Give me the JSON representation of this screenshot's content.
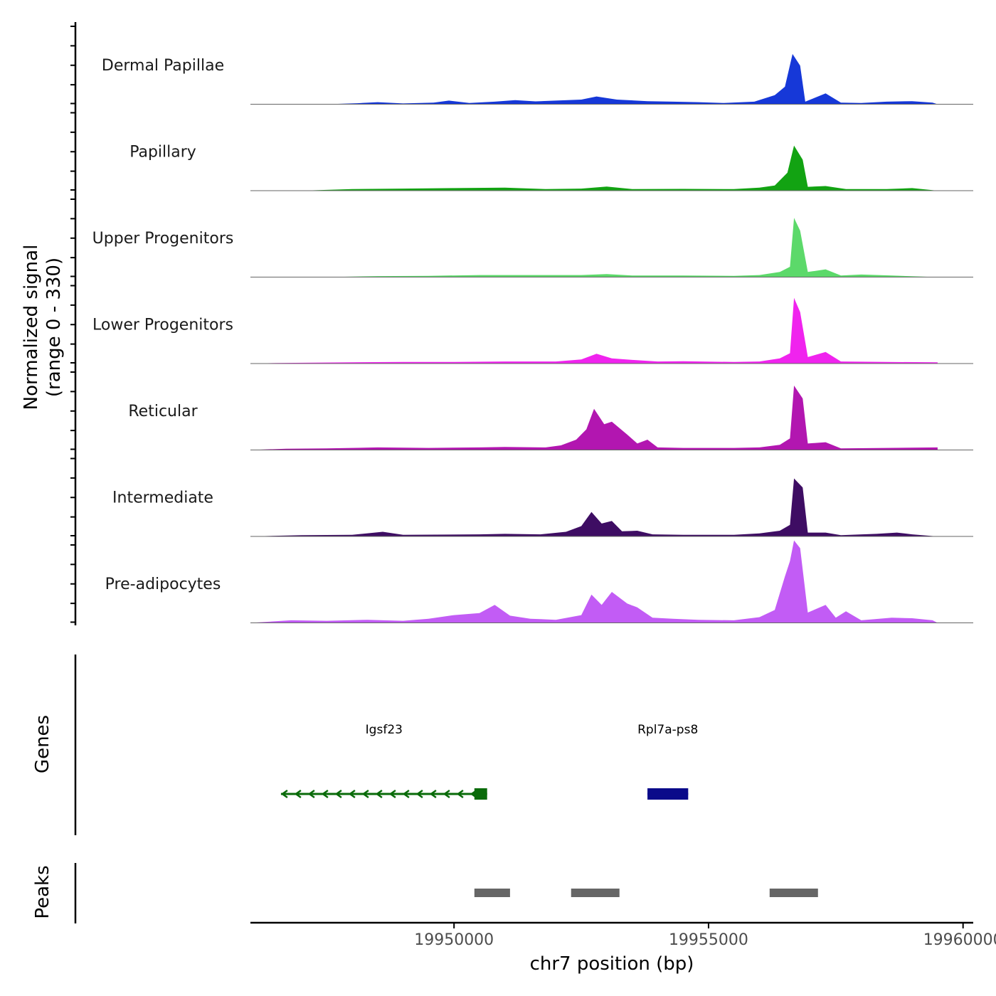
{
  "chart_data": {
    "type": "area",
    "title": "",
    "xlabel": "chr7 position (bp)",
    "ylabel": [
      "Normalized signal",
      "(range 0 - 330)"
    ],
    "ylim": [
      0,
      330
    ],
    "xlim": [
      19946000,
      19960200
    ],
    "x_ticks": [
      19950000,
      19955000,
      19960000
    ],
    "x_tick_labels": [
      "19950000",
      "19955000",
      "19960000"
    ],
    "tracks": [
      {
        "name": "Dermal Papillae",
        "color": "#1638d8",
        "points": [
          [
            19946000,
            0
          ],
          [
            19947500,
            0
          ],
          [
            19948100,
            4
          ],
          [
            19948500,
            8
          ],
          [
            19949000,
            3
          ],
          [
            19949600,
            6
          ],
          [
            19949900,
            14
          ],
          [
            19950300,
            5
          ],
          [
            19950800,
            10
          ],
          [
            19951200,
            16
          ],
          [
            19951600,
            11
          ],
          [
            19952000,
            14
          ],
          [
            19952500,
            18
          ],
          [
            19952800,
            30
          ],
          [
            19953200,
            18
          ],
          [
            19953800,
            12
          ],
          [
            19954300,
            10
          ],
          [
            19954800,
            8
          ],
          [
            19955300,
            5
          ],
          [
            19955900,
            10
          ],
          [
            19956300,
            35
          ],
          [
            19956500,
            68
          ],
          [
            19956650,
            195
          ],
          [
            19956800,
            150
          ],
          [
            19956900,
            10
          ],
          [
            19957300,
            42
          ],
          [
            19957600,
            6
          ],
          [
            19958000,
            5
          ],
          [
            19958500,
            10
          ],
          [
            19959000,
            12
          ],
          [
            19959400,
            6
          ],
          [
            19959500,
            0
          ]
        ]
      },
      {
        "name": "Papillary",
        "color": "#12a312",
        "points": [
          [
            19946000,
            0
          ],
          [
            19947000,
            0
          ],
          [
            19948000,
            6
          ],
          [
            19949000,
            8
          ],
          [
            19950000,
            10
          ],
          [
            19951000,
            12
          ],
          [
            19951800,
            6
          ],
          [
            19952500,
            8
          ],
          [
            19953000,
            16
          ],
          [
            19953500,
            6
          ],
          [
            19954500,
            7
          ],
          [
            19955500,
            6
          ],
          [
            19956000,
            12
          ],
          [
            19956300,
            20
          ],
          [
            19956550,
            70
          ],
          [
            19956680,
            175
          ],
          [
            19956850,
            120
          ],
          [
            19956950,
            15
          ],
          [
            19957300,
            18
          ],
          [
            19957700,
            6
          ],
          [
            19958500,
            6
          ],
          [
            19959000,
            10
          ],
          [
            19959500,
            0
          ]
        ]
      },
      {
        "name": "Upper Progenitors",
        "color": "#5cd96a",
        "points": [
          [
            19946000,
            0
          ],
          [
            19947500,
            0
          ],
          [
            19948500,
            4
          ],
          [
            19949500,
            5
          ],
          [
            19950500,
            8
          ],
          [
            19951500,
            8
          ],
          [
            19952500,
            8
          ],
          [
            19953000,
            12
          ],
          [
            19953500,
            6
          ],
          [
            19954500,
            6
          ],
          [
            19955500,
            5
          ],
          [
            19956000,
            8
          ],
          [
            19956400,
            20
          ],
          [
            19956600,
            40
          ],
          [
            19956680,
            230
          ],
          [
            19956800,
            180
          ],
          [
            19956950,
            20
          ],
          [
            19957300,
            30
          ],
          [
            19957600,
            6
          ],
          [
            19958000,
            10
          ],
          [
            19958600,
            6
          ],
          [
            19959500,
            0
          ]
        ]
      },
      {
        "name": "Lower Progenitors",
        "color": "#f023ee",
        "points": [
          [
            19946000,
            0
          ],
          [
            19946500,
            2
          ],
          [
            19948000,
            5
          ],
          [
            19949000,
            6
          ],
          [
            19950000,
            6
          ],
          [
            19951000,
            8
          ],
          [
            19952000,
            8
          ],
          [
            19952500,
            16
          ],
          [
            19952800,
            38
          ],
          [
            19953100,
            20
          ],
          [
            19953500,
            14
          ],
          [
            19954000,
            8
          ],
          [
            19954500,
            9
          ],
          [
            19955500,
            6
          ],
          [
            19956000,
            8
          ],
          [
            19956400,
            20
          ],
          [
            19956600,
            40
          ],
          [
            19956680,
            255
          ],
          [
            19956800,
            200
          ],
          [
            19956950,
            25
          ],
          [
            19957300,
            45
          ],
          [
            19957600,
            8
          ],
          [
            19958500,
            6
          ],
          [
            19959500,
            5
          ],
          [
            19959500,
            0
          ]
        ]
      },
      {
        "name": "Reticular",
        "color": "#b216b0",
        "points": [
          [
            19946000,
            0
          ],
          [
            19946700,
            5
          ],
          [
            19947500,
            6
          ],
          [
            19948500,
            10
          ],
          [
            19949500,
            8
          ],
          [
            19950500,
            10
          ],
          [
            19951000,
            12
          ],
          [
            19951800,
            10
          ],
          [
            19952100,
            18
          ],
          [
            19952400,
            40
          ],
          [
            19952600,
            80
          ],
          [
            19952750,
            160
          ],
          [
            19952950,
            100
          ],
          [
            19953100,
            110
          ],
          [
            19953400,
            60
          ],
          [
            19953600,
            25
          ],
          [
            19953800,
            40
          ],
          [
            19954000,
            10
          ],
          [
            19954500,
            8
          ],
          [
            19955500,
            8
          ],
          [
            19956000,
            10
          ],
          [
            19956400,
            20
          ],
          [
            19956600,
            45
          ],
          [
            19956680,
            250
          ],
          [
            19956850,
            200
          ],
          [
            19956950,
            25
          ],
          [
            19957300,
            30
          ],
          [
            19957600,
            6
          ],
          [
            19958500,
            8
          ],
          [
            19959500,
            10
          ],
          [
            19959500,
            0
          ]
        ]
      },
      {
        "name": "Intermediate",
        "color": "#3e0d63",
        "points": [
          [
            19946000,
            0
          ],
          [
            19947000,
            5
          ],
          [
            19948000,
            6
          ],
          [
            19948600,
            18
          ],
          [
            19949000,
            6
          ],
          [
            19950500,
            8
          ],
          [
            19951000,
            10
          ],
          [
            19951700,
            8
          ],
          [
            19952200,
            18
          ],
          [
            19952500,
            40
          ],
          [
            19952700,
            95
          ],
          [
            19952900,
            50
          ],
          [
            19953100,
            60
          ],
          [
            19953300,
            20
          ],
          [
            19953600,
            22
          ],
          [
            19953900,
            8
          ],
          [
            19954500,
            6
          ],
          [
            19955500,
            6
          ],
          [
            19956000,
            12
          ],
          [
            19956400,
            22
          ],
          [
            19956600,
            45
          ],
          [
            19956680,
            225
          ],
          [
            19956850,
            190
          ],
          [
            19956950,
            15
          ],
          [
            19957300,
            15
          ],
          [
            19957600,
            5
          ],
          [
            19958300,
            10
          ],
          [
            19958700,
            15
          ],
          [
            19959000,
            8
          ],
          [
            19959500,
            0
          ]
        ]
      },
      {
        "name": "Pre-adipocytes",
        "color": "#c25cf5",
        "points": [
          [
            19946000,
            0
          ],
          [
            19946800,
            10
          ],
          [
            19947500,
            8
          ],
          [
            19948300,
            12
          ],
          [
            19949000,
            8
          ],
          [
            19949500,
            16
          ],
          [
            19950000,
            30
          ],
          [
            19950500,
            38
          ],
          [
            19950800,
            70
          ],
          [
            19951100,
            28
          ],
          [
            19951500,
            16
          ],
          [
            19952000,
            12
          ],
          [
            19952500,
            30
          ],
          [
            19952700,
            110
          ],
          [
            19952900,
            70
          ],
          [
            19953100,
            120
          ],
          [
            19953400,
            75
          ],
          [
            19953600,
            60
          ],
          [
            19953900,
            20
          ],
          [
            19954300,
            16
          ],
          [
            19954800,
            12
          ],
          [
            19955500,
            10
          ],
          [
            19956000,
            22
          ],
          [
            19956300,
            50
          ],
          [
            19956500,
            180
          ],
          [
            19956600,
            240
          ],
          [
            19956680,
            320
          ],
          [
            19956800,
            290
          ],
          [
            19956950,
            40
          ],
          [
            19957300,
            70
          ],
          [
            19957500,
            20
          ],
          [
            19957700,
            45
          ],
          [
            19958000,
            10
          ],
          [
            19958600,
            20
          ],
          [
            19959000,
            18
          ],
          [
            19959400,
            10
          ],
          [
            19959500,
            0
          ]
        ]
      }
    ],
    "genes": [
      {
        "name": "Igsf23",
        "color": "#0a6b0a",
        "start": 19946600,
        "end": 19950650,
        "strand": "-",
        "exon": [
          19950400,
          19950650
        ]
      },
      {
        "name": "Rpl7a-ps8",
        "color": "#0a0a8a",
        "start": 19953800,
        "end": 19954600,
        "strand": "-",
        "exon": [
          19953800,
          19954600
        ]
      }
    ],
    "peaks": [
      [
        19950400,
        19951100
      ],
      [
        19952300,
        19953250
      ],
      [
        19956200,
        19957150
      ]
    ],
    "panel_labels": {
      "genes": "Genes",
      "peaks": "Peaks"
    },
    "peak_color": "#666666"
  }
}
